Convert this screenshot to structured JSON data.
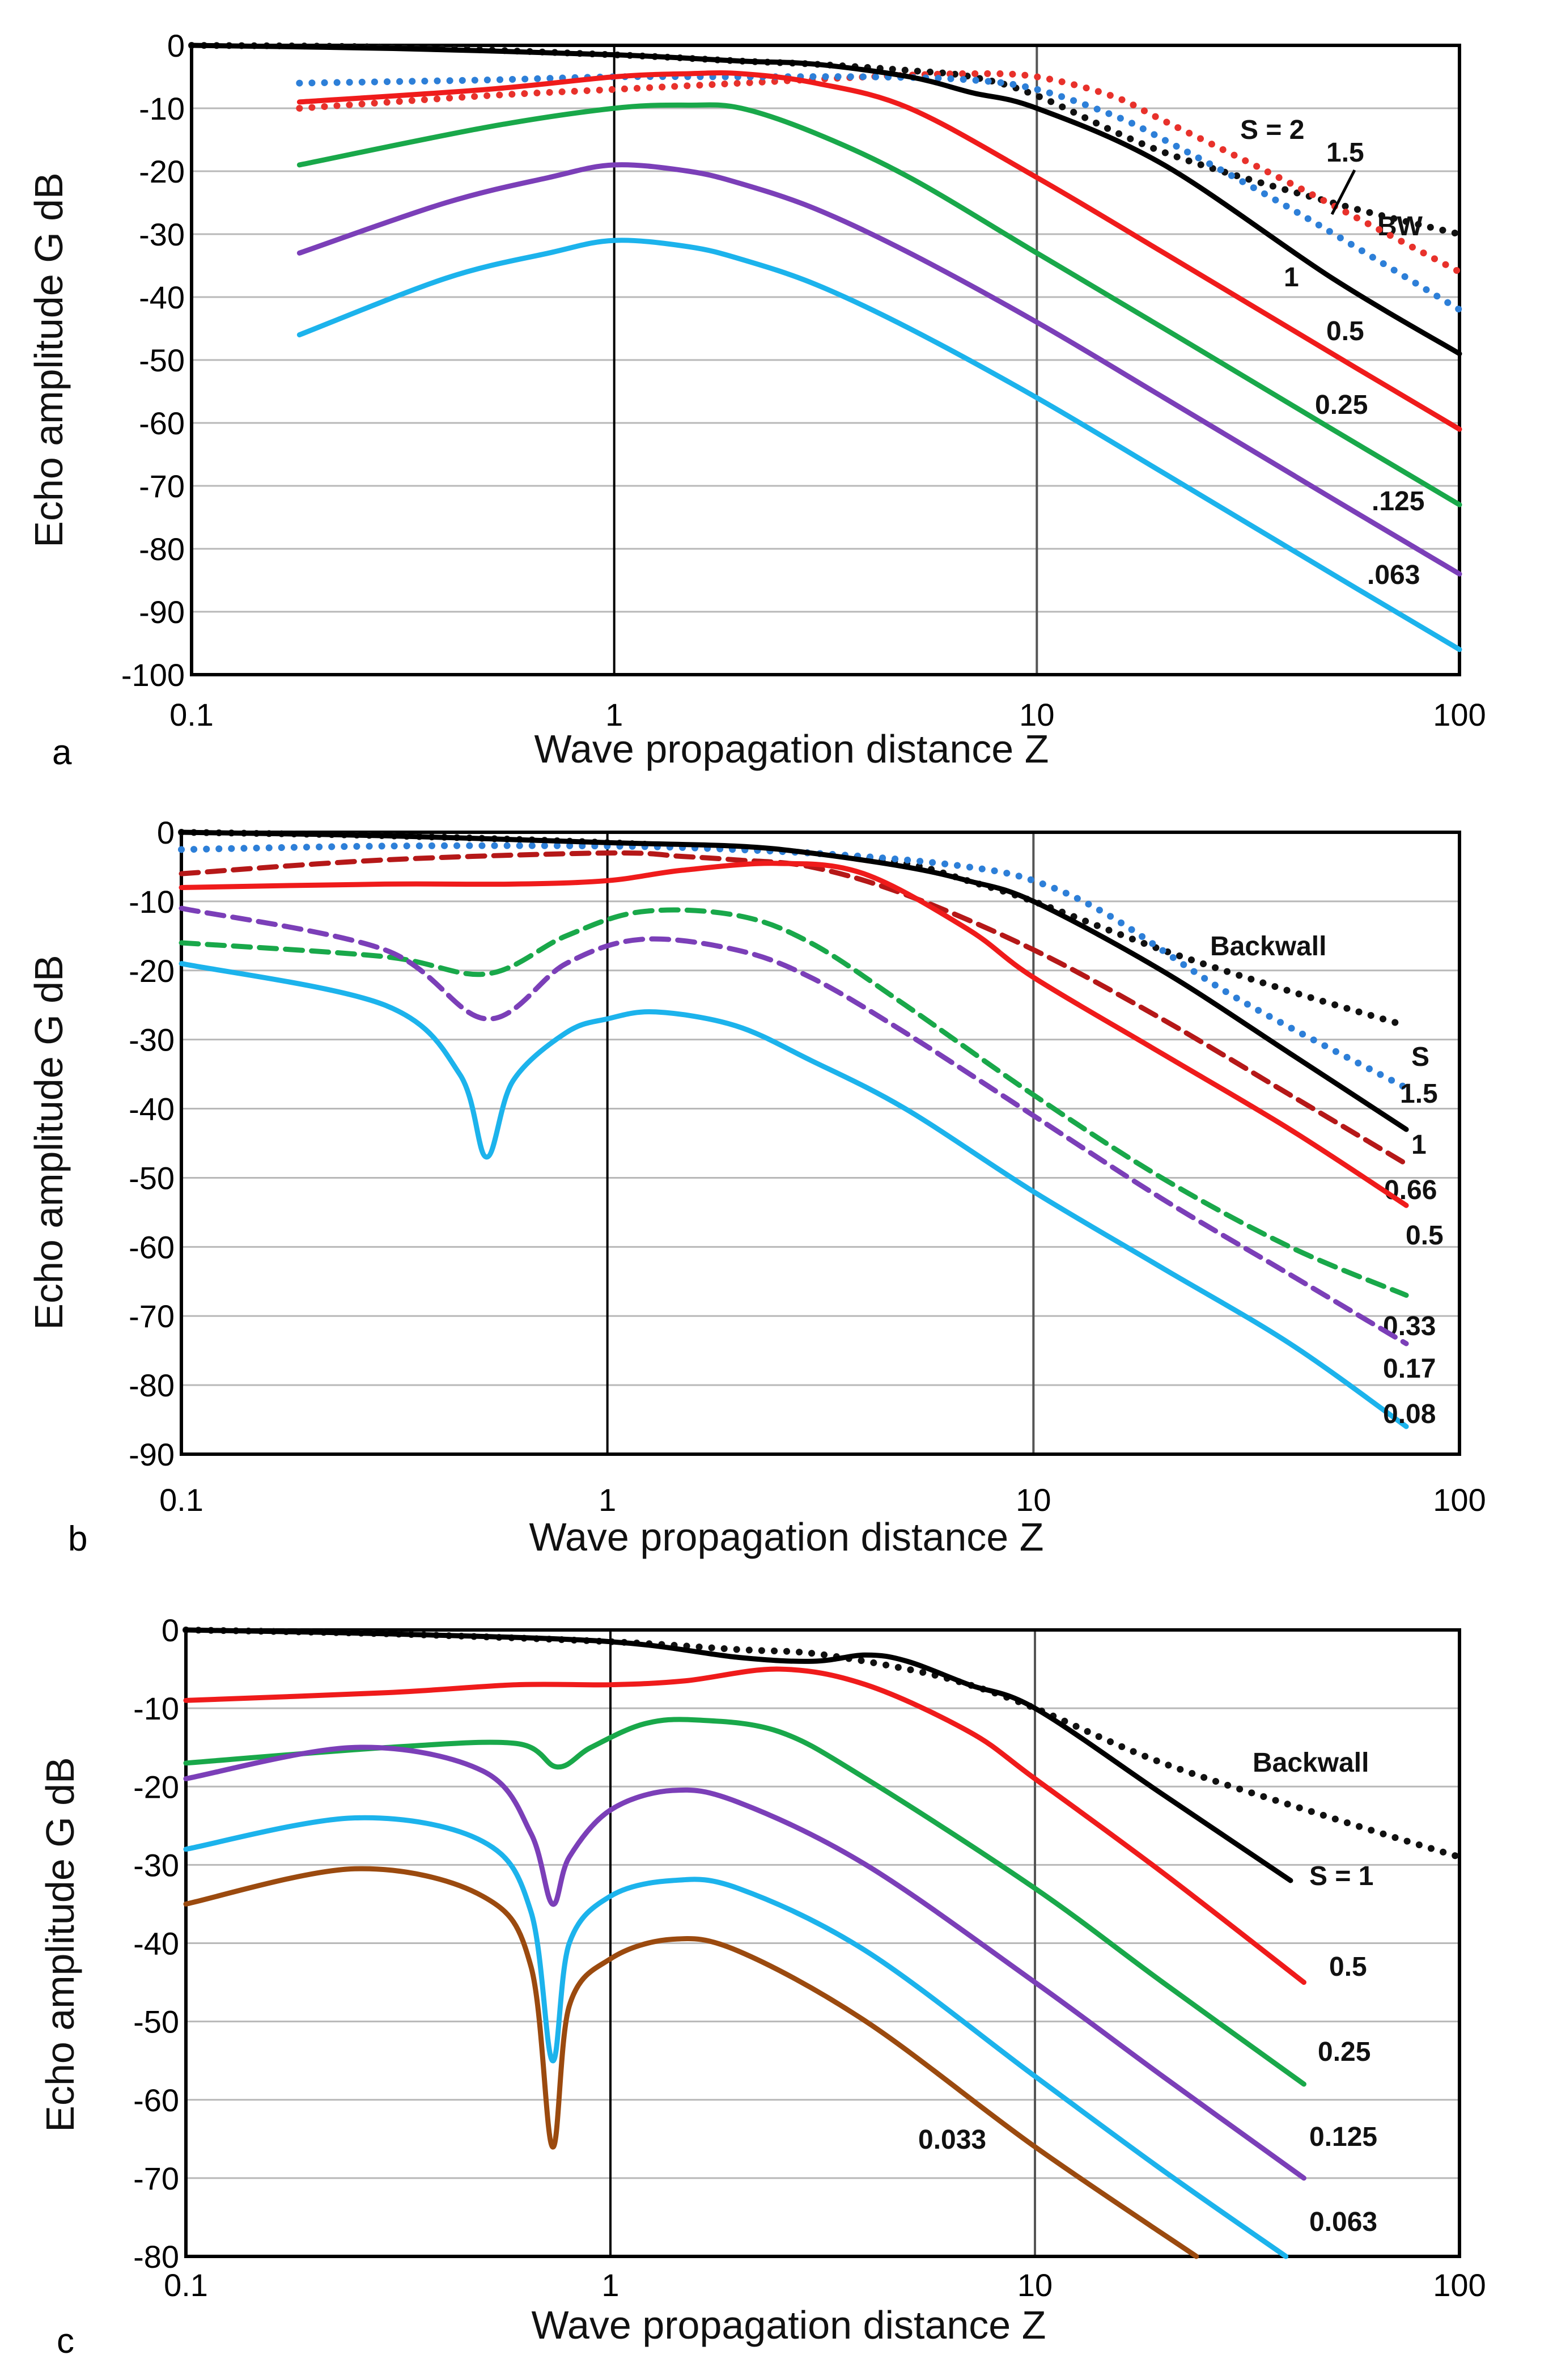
{
  "figure_caption_note": "",
  "chart_data": [
    {
      "type": "line",
      "panel": "a",
      "xlabel": "Wave propagation distance  Z",
      "ylabel": "Echo amplitude  G  dB",
      "x_scale": "log",
      "xlim": [
        0.1,
        100
      ],
      "ylim": [
        -100,
        0
      ],
      "x_ticks": [
        "0.1",
        "1",
        "10",
        "100"
      ],
      "y_ticks": [
        "0",
        "-10",
        "-20",
        "-30",
        "-40",
        "-50",
        "-60",
        "-70",
        "-80",
        "-90",
        "-100"
      ],
      "series": [
        {
          "name": "BW",
          "label": "BW",
          "color": "#111111",
          "style": "dotted",
          "x": [
            0.1,
            0.3,
            1,
            2,
            3,
            5,
            7,
            10,
            20,
            50,
            100
          ],
          "y": [
            0,
            -0.3,
            -1.5,
            -2.5,
            -3,
            -4,
            -5,
            -8,
            -17,
            -25,
            -30
          ]
        },
        {
          "name": "S = 2",
          "label": "S = 2",
          "color": "#e8312b",
          "style": "dotted",
          "x": [
            0.18,
            0.5,
            1,
            2,
            4,
            7,
            10,
            15,
            20,
            40,
            100
          ],
          "y": [
            -10,
            -8,
            -7,
            -6,
            -5,
            -4.5,
            -5,
            -8,
            -12,
            -22,
            -36
          ]
        },
        {
          "name": "S = 1.5",
          "label": "1.5",
          "color": "#2d7fd8",
          "style": "dotted",
          "x": [
            0.18,
            0.5,
            1,
            2,
            4,
            7,
            10,
            15,
            20,
            40,
            100
          ],
          "y": [
            -6,
            -5.5,
            -5,
            -5,
            -5,
            -5.5,
            -7,
            -11,
            -15,
            -26,
            -42
          ]
        },
        {
          "name": "S = 1",
          "label": "1",
          "color": "#000000",
          "style": "solid",
          "x": [
            0.1,
            0.3,
            1,
            2,
            3,
            5,
            7,
            10,
            20,
            50,
            100
          ],
          "y": [
            0,
            -0.5,
            -1.5,
            -2.5,
            -3,
            -5,
            -7.5,
            -10,
            -19,
            -37,
            -49
          ]
        },
        {
          "name": "S = 0.5",
          "label": "0.5",
          "color": "#ef1b1b",
          "style": "solid",
          "x": [
            0.18,
            0.5,
            1,
            1.5,
            2,
            3,
            5,
            10,
            20,
            50,
            100
          ],
          "y": [
            -9,
            -7,
            -5,
            -4.5,
            -4.5,
            -6,
            -10,
            -21,
            -33,
            -49,
            -61
          ]
        },
        {
          "name": "S = 0.25",
          "label": "0.25",
          "color": "#19a84a",
          "style": "solid",
          "x": [
            0.18,
            0.5,
            1,
            1.5,
            2,
            3,
            5,
            10,
            20,
            50,
            100
          ],
          "y": [
            -19,
            -13,
            -10,
            -9.5,
            -10,
            -14,
            -21,
            -33,
            -45,
            -61,
            -73
          ]
        },
        {
          "name": "S = 0.125",
          "label": ".125",
          "color": "#7b3fb8",
          "style": "solid",
          "x": [
            0.18,
            0.4,
            0.7,
            1,
            1.5,
            2,
            3,
            5,
            10,
            20,
            50,
            100
          ],
          "y": [
            -33,
            -25,
            -21,
            -19,
            -20,
            -22,
            -26,
            -33,
            -44,
            -56,
            -72,
            -84
          ]
        },
        {
          "name": "S = 0.063",
          "label": ".063",
          "color": "#1cb3ec",
          "style": "solid",
          "x": [
            0.18,
            0.4,
            0.7,
            1,
            1.5,
            2,
            3,
            5,
            10,
            20,
            50,
            100
          ],
          "y": [
            -46,
            -37,
            -33,
            -31,
            -32,
            -34,
            -38,
            -45,
            -56,
            -68,
            -84,
            -96
          ]
        }
      ]
    },
    {
      "type": "line",
      "panel": "b",
      "xlabel": "Wave propagation distance  Z",
      "ylabel": "Echo amplitude  G  dB",
      "x_scale": "log",
      "xlim": [
        0.1,
        100
      ],
      "ylim": [
        -90,
        0
      ],
      "x_ticks": [
        "0.1",
        "1",
        "10",
        "100"
      ],
      "y_ticks": [
        "0",
        "-10",
        "-20",
        "-30",
        "-40",
        "-50",
        "-60",
        "-70",
        "-80",
        "-90"
      ],
      "series_title": "S",
      "series": [
        {
          "name": "Backwall",
          "label": "Backwall",
          "color": "#111111",
          "style": "dotted",
          "x": [
            0.1,
            0.3,
            1,
            3,
            5,
            7,
            10,
            20,
            40,
            75
          ],
          "y": [
            0,
            -0.5,
            -1.5,
            -3,
            -4.5,
            -7,
            -10,
            -17,
            -23,
            -28
          ]
        },
        {
          "name": "S = 1.5",
          "label": "1.5",
          "color": "#2d7fd8",
          "style": "dotted",
          "x": [
            0.1,
            0.3,
            1,
            2,
            4,
            7,
            10,
            15,
            30,
            75
          ],
          "y": [
            -2.5,
            -2,
            -2,
            -2.5,
            -3.5,
            -5,
            -7,
            -12,
            -24,
            -37
          ]
        },
        {
          "name": "S = 1",
          "label": "1",
          "color": "#000000",
          "style": "solid",
          "x": [
            0.1,
            0.3,
            1,
            2,
            3,
            5,
            7,
            10,
            20,
            40,
            75
          ],
          "y": [
            0,
            -0.5,
            -1.5,
            -2,
            -3,
            -5,
            -7,
            -10,
            -20,
            -32,
            -43
          ]
        },
        {
          "name": "S = 0.66",
          "label": "0.66",
          "color": "#b51818",
          "style": "dashed",
          "x": [
            0.1,
            0.3,
            1,
            1.5,
            2,
            3,
            5,
            10,
            20,
            40,
            75
          ],
          "y": [
            -6,
            -4,
            -3,
            -3.5,
            -4,
            -5,
            -9,
            -17,
            -27,
            -38,
            -48
          ]
        },
        {
          "name": "S = 0.5",
          "label": "0.5",
          "color": "#ef1b1b",
          "style": "solid",
          "x": [
            0.1,
            0.3,
            0.6,
            1,
            1.5,
            2.5,
            4,
            7,
            10,
            20,
            40,
            75
          ],
          "y": [
            -8,
            -7.5,
            -7.5,
            -7,
            -5.5,
            -4.5,
            -6,
            -14,
            -21,
            -32,
            -43,
            -54
          ]
        },
        {
          "name": "S = 0.33",
          "label": "0.33",
          "color": "#19a84a",
          "style": "dashed",
          "x": [
            0.1,
            0.3,
            0.52,
            0.8,
            1.2,
            2,
            3,
            5,
            10,
            20,
            40,
            75
          ],
          "y": [
            -16,
            -18,
            -20.5,
            -15,
            -11.5,
            -12,
            -16,
            -25,
            -38,
            -50,
            -60,
            -67
          ]
        },
        {
          "name": "S = 0.17",
          "label": "0.17",
          "color": "#7b3fb8",
          "style": "dashed",
          "x": [
            0.1,
            0.3,
            0.52,
            0.8,
            1.2,
            2,
            3,
            5,
            10,
            20,
            40,
            75
          ],
          "y": [
            -11,
            -17,
            -27,
            -19,
            -15.5,
            -17,
            -21,
            -29,
            -41,
            -53,
            -64,
            -74
          ]
        },
        {
          "name": "S = 0.08",
          "label": "0.08",
          "color": "#1cb3ec",
          "style": "solid",
          "x": [
            0.1,
            0.3,
            0.45,
            0.52,
            0.6,
            0.8,
            1,
            1.3,
            2,
            3,
            5,
            10,
            20,
            40,
            75
          ],
          "y": [
            -19,
            -25,
            -35,
            -47,
            -36,
            -29,
            -27,
            -26,
            -28,
            -33,
            -40,
            -52,
            -63,
            -74,
            -86
          ]
        }
      ]
    },
    {
      "type": "line",
      "panel": "c",
      "xlabel": "Wave propagation distance  Z",
      "ylabel": "Echo amplitude  G  dB",
      "x_scale": "log",
      "xlim": [
        0.1,
        100
      ],
      "ylim": [
        -80,
        0
      ],
      "x_ticks": [
        "0.1",
        "1",
        "10",
        "100"
      ],
      "y_ticks": [
        "0",
        "-10",
        "-20",
        "-30",
        "-40",
        "-50",
        "-60",
        "-70",
        "-80"
      ],
      "series": [
        {
          "name": "Backwall",
          "label": "Backwall",
          "color": "#111111",
          "style": "dotted",
          "x": [
            0.1,
            0.3,
            1,
            2,
            3,
            5,
            7,
            10,
            20,
            50,
            100
          ],
          "y": [
            0,
            -0.5,
            -1.5,
            -2.5,
            -3,
            -5,
            -7,
            -10,
            -17,
            -24,
            -29
          ]
        },
        {
          "name": "S = 1",
          "label": "S = 1",
          "color": "#000000",
          "style": "solid",
          "x": [
            0.1,
            0.3,
            1,
            2,
            3,
            4,
            5,
            7,
            10,
            20,
            40
          ],
          "y": [
            0,
            -0.5,
            -1.5,
            -3.5,
            -4,
            -3.2,
            -4,
            -7,
            -10,
            -21,
            -32
          ]
        },
        {
          "name": "S = 0.5",
          "label": "0.5",
          "color": "#ef1b1b",
          "style": "solid",
          "x": [
            0.1,
            0.3,
            0.6,
            1,
            1.5,
            2.5,
            4,
            7,
            10,
            20,
            43
          ],
          "y": [
            -9,
            -8,
            -7,
            -7,
            -6.5,
            -5,
            -7,
            -13,
            -19,
            -31,
            -45
          ]
        },
        {
          "name": "S = 0.25",
          "label": "0.25",
          "color": "#19a84a",
          "style": "solid",
          "x": [
            0.1,
            0.3,
            0.6,
            0.75,
            0.9,
            1.2,
            1.6,
            2.5,
            4,
            10,
            20,
            43
          ],
          "y": [
            -17,
            -15,
            -14.5,
            -17.5,
            -15,
            -12,
            -11.5,
            -13,
            -19,
            -33,
            -45,
            -58
          ]
        },
        {
          "name": "S = 0.125",
          "label": "0.125",
          "color": "#7b3fb8",
          "style": "solid",
          "x": [
            0.1,
            0.25,
            0.5,
            0.65,
            0.73,
            0.8,
            1,
            1.4,
            2,
            4,
            10,
            20,
            43
          ],
          "y": [
            -19,
            -15,
            -18,
            -26,
            -35,
            -29,
            -23,
            -20.5,
            -22,
            -30,
            -45,
            -57,
            -70
          ]
        },
        {
          "name": "S = 0.063",
          "label": "0.063",
          "color": "#1cb3ec",
          "style": "solid",
          "x": [
            0.1,
            0.25,
            0.5,
            0.65,
            0.73,
            0.8,
            1,
            1.4,
            2,
            4,
            10,
            20,
            39
          ],
          "y": [
            -28,
            -24,
            -27,
            -36,
            -55,
            -40,
            -34,
            -32,
            -33,
            -41,
            -57,
            -69,
            -80
          ]
        },
        {
          "name": "S = 0.033",
          "label": "0.033",
          "color": "#9b4a0f",
          "style": "solid",
          "x": [
            0.1,
            0.25,
            0.5,
            0.65,
            0.73,
            0.8,
            1,
            1.4,
            2,
            4,
            10,
            24
          ],
          "y": [
            -35,
            -30.5,
            -34,
            -43,
            -66,
            -48,
            -42,
            -39.5,
            -41,
            -50,
            -66,
            -80
          ]
        }
      ]
    }
  ],
  "panel_letters": [
    "a",
    "b",
    "c"
  ]
}
